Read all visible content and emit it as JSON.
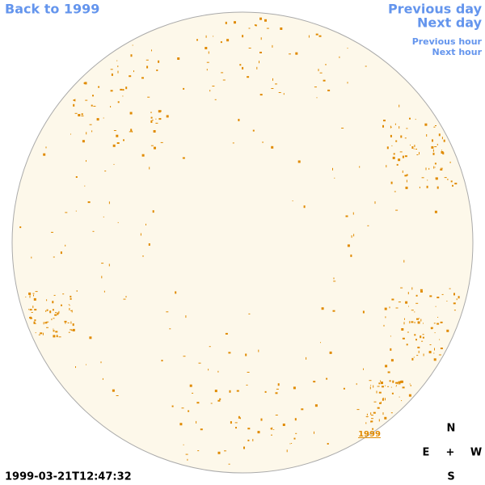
{
  "nav": {
    "back": "Back to 1999",
    "previous_day": "Previous day",
    "next_day": "Next day",
    "previous_hour": "Previous hour",
    "next_hour": "Next hour"
  },
  "timestamp": "1999-03-21T12:47:32",
  "year_label": "1999",
  "compass": {
    "north": "N",
    "east": "E",
    "center": "+",
    "west": "W",
    "south": "S"
  }
}
